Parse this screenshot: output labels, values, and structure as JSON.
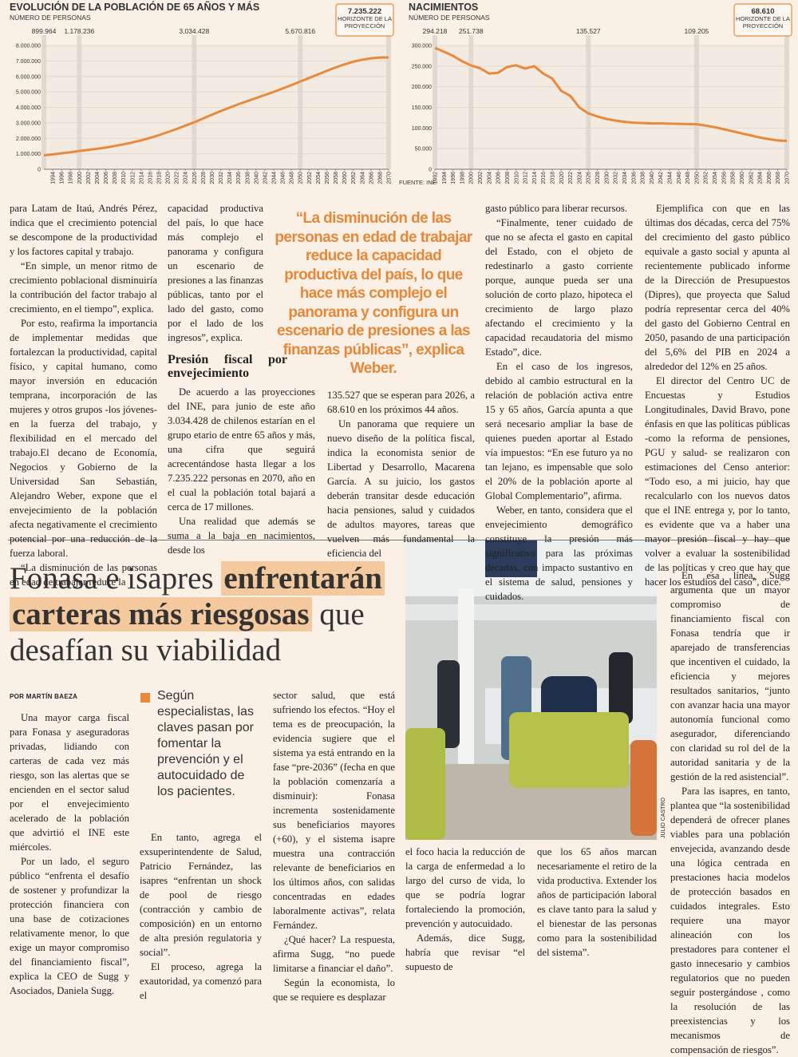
{
  "chart_data": [
    {
      "type": "line",
      "title": "EVOLUCIÓN DE LA POBLACIÓN DE 65 AÑOS Y MÁS",
      "subtitle": "NÚMERO DE PERSONAS",
      "x": [
        1992,
        1994,
        1996,
        1998,
        2000,
        2002,
        2004,
        2006,
        2008,
        2010,
        2012,
        2014,
        2016,
        2018,
        2020,
        2022,
        2024,
        2026,
        2028,
        2030,
        2032,
        2034,
        2036,
        2038,
        2040,
        2042,
        2044,
        2046,
        2048,
        2050,
        2052,
        2054,
        2056,
        2058,
        2060,
        2062,
        2064,
        2066,
        2068,
        2070
      ],
      "series": [
        {
          "color": "#e8893b",
          "values": [
            899964,
            960000,
            1030000,
            1100000,
            1178236,
            1250000,
            1320000,
            1400000,
            1500000,
            1610000,
            1730000,
            1870000,
            2020000,
            2200000,
            2400000,
            2600000,
            2820000,
            3034428,
            3280000,
            3520000,
            3760000,
            3980000,
            4200000,
            4400000,
            4600000,
            4800000,
            5000000,
            5220000,
            5440000,
            5670816,
            5900000,
            6130000,
            6360000,
            6580000,
            6780000,
            6950000,
            7080000,
            7170000,
            7220000,
            7235222
          ]
        }
      ],
      "xlim": [
        1992,
        2070
      ],
      "xticks": [
        1994,
        1996,
        1998,
        2000,
        2002,
        2004,
        2006,
        2008,
        2010,
        2012,
        2014,
        2016,
        2018,
        2020,
        2022,
        2024,
        2026,
        2028,
        2030,
        2032,
        2034,
        2036,
        2038,
        2040,
        2042,
        2044,
        2046,
        2048,
        2050,
        2052,
        2054,
        2056,
        2058,
        2060,
        2062,
        2064,
        2066,
        2068,
        2070
      ],
      "ylim": [
        0,
        8000000
      ],
      "yticks": [
        0,
        {
          "value": 1000000,
          "label": "1.000.000"
        },
        {
          "value": 2000000,
          "label": "2.000.000"
        },
        {
          "value": 3000000,
          "label": "3.000.000"
        },
        {
          "value": 4000000,
          "label": "4.000.000"
        },
        {
          "value": 5000000,
          "label": "5.000.000"
        },
        {
          "value": 6000000,
          "label": "6.000.000"
        },
        {
          "value": 7000000,
          "label": "7.000.000"
        },
        {
          "value": 8000000,
          "label": "8.000.000"
        }
      ],
      "grid": true,
      "annotations": [
        {
          "x": 1992,
          "label": "899.964"
        },
        {
          "x": 2000,
          "label": "1.178.236"
        },
        {
          "x": 2026,
          "label": "3.034.428"
        },
        {
          "x": 2050,
          "label": "5.670.816"
        },
        {
          "x": 2070,
          "label": "7.235.222",
          "note": "HORIZONTE DE LA PROYECCIÓN"
        }
      ]
    },
    {
      "type": "line",
      "title": "NACIMIENTOS",
      "subtitle": "NÚMERO DE PERSONAS",
      "x": [
        1992,
        1994,
        1996,
        1998,
        2000,
        2002,
        2004,
        2006,
        2008,
        2010,
        2012,
        2014,
        2016,
        2018,
        2020,
        2022,
        2024,
        2026,
        2028,
        2030,
        2032,
        2034,
        2036,
        2038,
        2040,
        2042,
        2044,
        2046,
        2048,
        2050,
        2052,
        2054,
        2056,
        2058,
        2060,
        2062,
        2064,
        2066,
        2068,
        2070
      ],
      "series": [
        {
          "color": "#e8893b",
          "values": [
            294218,
            285000,
            275000,
            262000,
            251738,
            245000,
            232000,
            234000,
            248000,
            252000,
            244000,
            250000,
            232000,
            220000,
            190000,
            178000,
            150000,
            135527,
            128000,
            122000,
            118000,
            115000,
            113000,
            112000,
            111000,
            111000,
            110500,
            110000,
            109600,
            109205,
            106000,
            102000,
            97000,
            92000,
            87000,
            82000,
            77000,
            73000,
            70000,
            68610
          ]
        }
      ],
      "xlim": [
        1992,
        2070
      ],
      "xticks": [
        1992,
        1994,
        1996,
        1998,
        2000,
        2002,
        2004,
        2006,
        2008,
        2010,
        2012,
        2014,
        2016,
        2018,
        2020,
        2022,
        2024,
        2026,
        2028,
        2030,
        2032,
        2034,
        2036,
        2038,
        2040,
        2042,
        2044,
        2046,
        2048,
        2050,
        2052,
        2054,
        2056,
        2058,
        2060,
        2062,
        2064,
        2066,
        2068,
        2070
      ],
      "ylim": [
        0,
        300000
      ],
      "yticks": [
        0,
        {
          "value": 50000,
          "label": "50.000"
        },
        {
          "value": 100000,
          "label": "100.000"
        },
        {
          "value": 150000,
          "label": "150.000"
        },
        {
          "value": 200000,
          "label": "200.000"
        },
        {
          "value": 250000,
          "label": "250.000"
        },
        {
          "value": 300000,
          "label": "300.000"
        }
      ],
      "grid": true,
      "annotations": [
        {
          "x": 1992,
          "label": "294.218"
        },
        {
          "x": 2000,
          "label": "251.738"
        },
        {
          "x": 2026,
          "label": "135.527"
        },
        {
          "x": 2050,
          "label": "109.205"
        },
        {
          "x": 2070,
          "label": "68.610",
          "note": "HORIZONTE DE LA PROYECCIÓN"
        }
      ],
      "source": "FUENTE: INE"
    }
  ],
  "top_article": {
    "pull_quote": "“La disminución de las personas en edad de trabajar reduce la capacidad productiva del país, lo que hace más complejo el panorama y configura un escenario de presiones a las finanzas públicas”, explica Weber.",
    "columns": [
      {
        "paragraphs": [
          "para Latam de Itaú, Andrés Pérez, indica que el crecimiento potencial se descompone de la productividad y los factores capital y trabajo.",
          "“En simple, un menor ritmo de crecimiento poblacional disminuiría la contribución del factor trabajo al crecimiento, en el tiempo”, explica.",
          "Por esto, reafirma la importancia de implementar medidas que fortalezcan la productividad, capital físico, y capital humano, como mayor inversión en educación temprana, incorporación de las mujeres y otros grupos -los jóvenes- en la fuerza del trabajo, y flexibilidad en el mercado del trabajo.El decano de Economía, Negocios y Gobierno de la Universidad San Sebastián, Alejandro Weber, expone que el envejecimiento de la población afecta negativamente el crecimiento potencial por una reducción de la fuerza laboral.",
          "“La disminución de las personas en edad de trabajar reduce la"
        ]
      },
      {
        "paragraphs": [
          "capacidad productiva del país, lo que hace más complejo el panorama y configura un escenario de presiones a las finanzas públicas, tanto por el lado del gasto, como por el lado de los ingresos”, explica."
        ],
        "heading": "Presión fiscal por envejecimiento",
        "paragraphs_after": [
          "De acuerdo a las proyecciones del INE, para junio de este año 3.034.428 de chilenos estarían en el grupo etario de entre 65 años y más, una cifra que seguirá acrecentándose hasta llegar a los 7.235.222 personas en 2070, año en el cual la población total bajará a cerca de 17 millones.",
          "Una realidad que además se suma a la baja en nacimientos, desde los"
        ]
      },
      {
        "paragraphs": [
          "135.527 que se esperan para 2026, a 68.610 en los próximos 44 años.",
          "Un panorama que requiere un nuevo diseño de la política fiscal, indica la economista senior de Libertad y Desarrollo, Macarena García. A su juicio, los gastos deberán transitar desde educación hacia pensiones, salud y cuidados de adultos mayores, tareas que vuelven más fundamental la eficiencia del"
        ]
      },
      {
        "paragraphs": [
          "gasto público para liberar recursos.",
          "“Finalmente, tener cuidado de que no se afecta el gasto en capital del Estado, con el objeto de redestinarlo a gasto corriente porque, aunque pueda ser una solución de corto plazo, hipoteca el crecimiento de largo plazo afectando el crecimiento y la capacidad recaudatoria del mismo Estado”, dice.",
          "En el caso de los ingresos, debido al cambio estructural en la relación de población activa entre 15 y 65 años, García apunta a que será necesario ampliar la base de quienes pueden aportar al Estado vía impuestos: “En ese futuro ya no tan lejano, es impensable que solo el 20% de la población aporte al Global Complementario”, afirma.",
          "Weber, en tanto, considera que el envejecimiento demográfico constituye la presión más significativa para las próximas décadas, con impacto sustantivo en el sistema de salud, pensiones y cuidados."
        ]
      },
      {
        "paragraphs": [
          "Ejemplifica con que en las últimas dos décadas, cerca del 75% del crecimiento del gasto público equivale a gasto social y apunta al recientemente publicado informe de la Dirección de Presupuestos (Dipres), que proyecta que Salud podría representar cerca del 40% del gasto del Gobierno Central en 2050, pasando de una participación del 5,6% del PIB en 2024 a alrededor del 12% en 25 años.",
          "El director del Centro UC de Encuestas y Estudios Longitudinales, David Bravo, pone énfasis en que las políticas públicas -como la reforma de pensiones, PGU y salud- se realizaron con estimaciones del Censo anterior: “Todo eso, a mi juicio, hay que recalcularlo con los nuevos datos que el INE entrega y, por lo tanto, es evidente que va a haber una mayor presión fiscal y hay que volver a evaluar la sostenibilidad de las políticas y creo que hay que hacer los estudios del caso”, dice."
        ]
      }
    ]
  },
  "bottom_article": {
    "headline": [
      {
        "text": "Fonasa e isapres"
      },
      {
        "text": "enfrentarán",
        "highlight": true
      },
      {
        "text": "carteras más riesgosas",
        "highlight": true
      },
      {
        "text": "que desafían su viabilidad"
      }
    ],
    "byline": "POR MARTÍN BAEZA",
    "summary": "Según especialistas, las claves pasan por fomentar la prevención y el autocuidado de los pacientes.",
    "photo_credit": "JULIO CASTRO",
    "columns": [
      {
        "paragraphs": [
          "Una mayor carga fiscal para Fonasa y aseguradoras privadas, lidiando con carteras de cada vez más riesgo, son las alertas que se encienden en el sector salud por el envejecimiento acelerado de la población que advirtió el INE este miércoles.",
          "Por un lado, el seguro público “enfrenta el desafío de sostener y profundizar la protección financiera con una base de cotizaciones relativamente menor, lo que exige un mayor compromiso del financiamiento fiscal”, explica la CEO de Sugg y Asociados, Daniela Sugg."
        ]
      },
      {
        "paragraphs": [
          "En tanto, agrega el exsuperintendente de Salud, Patricio Fernández, las isapres “enfrentan un shock de pool de riesgo (contracción y cambio de composición) en un entorno de alta presión regulatoria y social”.",
          "El proceso, agrega la exautoridad, ya comenzó para el"
        ]
      },
      {
        "paragraphs": [
          "sector salud, que está sufriendo los efectos. “Hoy el tema es de preocupación, la evidencia sugiere que el sistema ya está entrando en la fase “pre-2036” (fecha en que la población comenzaría a disminuir): Fonasa incrementa sostenidamente sus beneficiarios mayores (+60), y el sistema isapre muestra una contracción relevante de beneficiarios en los últimos años, con salidas concentradas en edades laboralmente activas”, relata Fernández.",
          "¿Qué hacer? La respuesta, afirma Sugg, “no puede limitarse a financiar el daño”.",
          "Según la economista, lo que se requiere es desplazar"
        ]
      },
      {
        "paragraphs": [
          "el foco hacia la reducción de la carga de enfermedad a lo largo del curso de vida, lo que se podría lograr fortaleciendo la promoción, prevención y autocuidado.",
          "Además, dice Sugg, habría que revisar “el supuesto de"
        ]
      },
      {
        "paragraphs": [
          "que los 65 años marcan necesariamente el retiro de la vida productiva. Extender los años de participación laboral es clave tanto para la salud y el bienestar de las personas como para la sostenibilidad del sistema”."
        ]
      },
      {
        "paragraphs": [
          "En esa línea, Sugg argumenta que un mayor compromiso de financiamiento fiscal con Fonasa tendría que ir aparejado de transferencias que incentiven el cuidado, la eficiencia y mejores resultados sanitarios, “junto con avanzar hacia una mayor autonomía funcional como asegurador, diferenciando con claridad su rol del de la autoridad sanitaria y de la gestión de la red asistencial”.",
          "Para las isapres, en tanto, plantea que “la sostenibilidad dependerá de ofrecer planes viables para una población envejecida, avanzando desde una lógica centrada en prestaciones hacia modelos de protección basados en cuidados integrales. Esto requiere una mayor alineación con los prestadores para contener el gasto innecesario y cambios regulatorios que no pueden seguir postergándose , como la resolución de las preexistencias y los mecanismos de compensación de riesgos”."
        ]
      }
    ]
  }
}
